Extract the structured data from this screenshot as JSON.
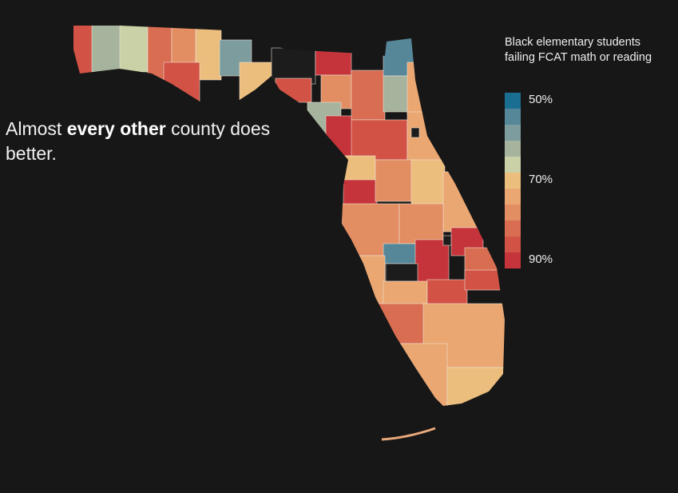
{
  "headline": {
    "before": "Almost ",
    "bold": "every other",
    "after": " county does better."
  },
  "legend": {
    "title_line1": "Black elementary students",
    "title_line2": "failing FCAT math or reading",
    "colors": [
      "#1a6e92",
      "#568799",
      "#7d9c9e",
      "#a6b39d",
      "#cbd1a6",
      "#ecbe7d",
      "#eaa772",
      "#e38d62",
      "#d86d52",
      "#d25245",
      "#c5343a"
    ],
    "ticks": [
      {
        "label": "50%"
      },
      {
        "label": "70%"
      },
      {
        "label": "90%"
      }
    ]
  },
  "map": {
    "no_data_color": "#1c1c1c",
    "border_color": "#f0e6d8"
  }
}
